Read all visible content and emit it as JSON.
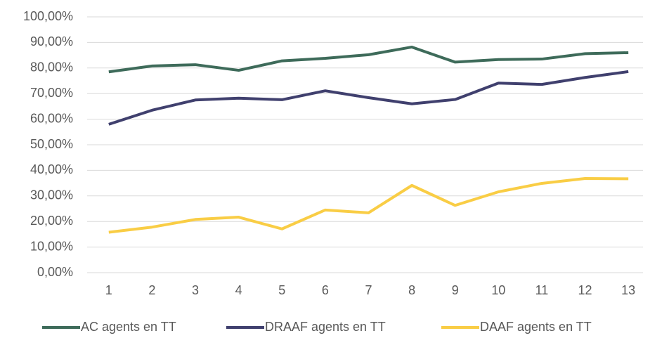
{
  "chart_data": {
    "type": "line",
    "categories": [
      1,
      2,
      3,
      4,
      5,
      6,
      7,
      8,
      9,
      10,
      11,
      12,
      13
    ],
    "series": [
      {
        "name": "AC agents en TT",
        "color": "#3e6b5a",
        "values": [
          78.5,
          80.8,
          81.3,
          79.1,
          82.8,
          83.8,
          85.2,
          88.2,
          82.3,
          83.3,
          83.5,
          85.6,
          86.0
        ]
      },
      {
        "name": "DRAAF agents en TT",
        "color": "#40406e",
        "values": [
          58.0,
          63.5,
          67.5,
          68.2,
          67.6,
          71.1,
          68.4,
          66.0,
          67.7,
          74.1,
          73.6,
          76.3,
          78.6
        ]
      },
      {
        "name": "DAAF agents en TT",
        "color": "#f9cd45",
        "values": [
          15.8,
          17.8,
          20.8,
          21.7,
          17.1,
          24.5,
          23.4,
          34.1,
          26.3,
          31.6,
          34.9,
          36.8,
          36.7
        ]
      }
    ],
    "ylim": [
      0,
      100
    ],
    "yticks": [
      {
        "value": 0,
        "label": "0,00%"
      },
      {
        "value": 10,
        "label": "10,00%"
      },
      {
        "value": 20,
        "label": "20,00%"
      },
      {
        "value": 30,
        "label": "30,00%"
      },
      {
        "value": 40,
        "label": "40,00%"
      },
      {
        "value": 50,
        "label": "50,00%"
      },
      {
        "value": 60,
        "label": "60,00%"
      },
      {
        "value": 70,
        "label": "70,00%"
      },
      {
        "value": 80,
        "label": "80,00%"
      },
      {
        "value": 90,
        "label": "90,00%"
      },
      {
        "value": 100,
        "label": "100,00%"
      }
    ],
    "grid": true,
    "legend": "bottom"
  }
}
